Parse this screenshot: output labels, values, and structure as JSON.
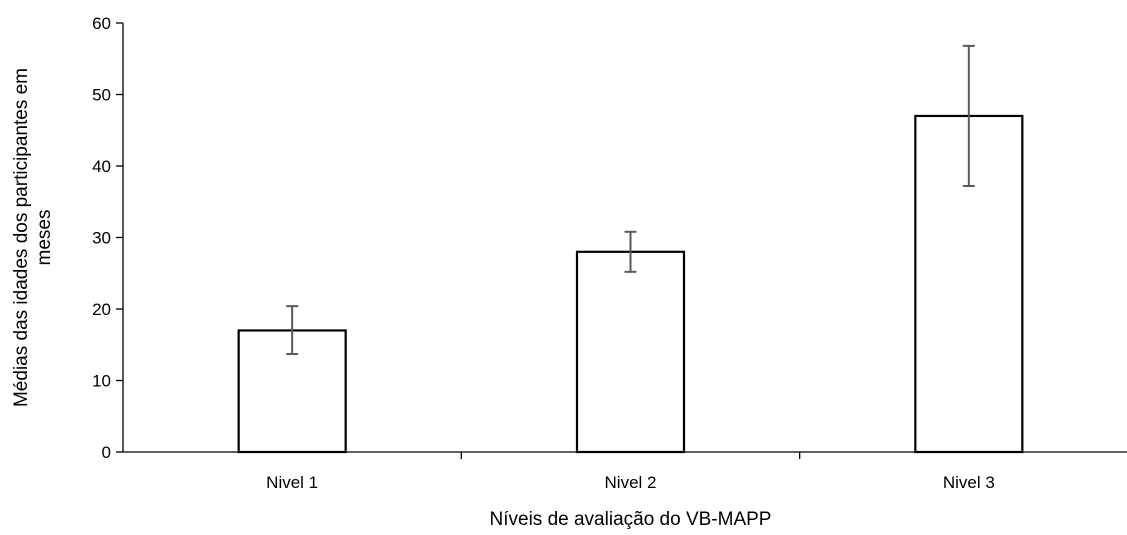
{
  "chart_data": {
    "type": "bar",
    "title": "",
    "xlabel": "Níveis de avaliação do VB-MAPP",
    "ylabel_lines": [
      "Médias das idades dos participantes em",
      "meses"
    ],
    "categories": [
      "Nivel 1",
      "Nivel 2",
      "Nivel 3"
    ],
    "values": [
      17,
      28,
      47
    ],
    "error_low": [
      13.7,
      25.2,
      37.2
    ],
    "error_high": [
      20.4,
      30.8,
      56.8
    ],
    "ylim": [
      0,
      60
    ],
    "yticks": [
      "0",
      "10",
      "20",
      "30",
      "40",
      "50",
      "60"
    ],
    "grid": false,
    "legend": "none",
    "bar_fill": "#ffffff",
    "bar_stroke": "#000000",
    "error_color": "#595959"
  }
}
